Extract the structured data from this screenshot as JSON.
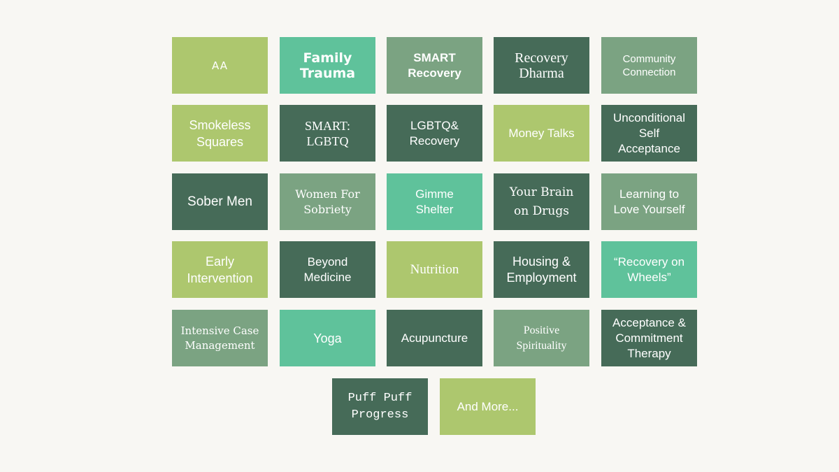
{
  "colors": {
    "light_green": "#adc76e",
    "teal": "#5fc29b",
    "sage": "#7ba382",
    "dark_green": "#466b58",
    "background": "#f8f7f3"
  },
  "tiles": [
    {
      "label": "AA",
      "color": "light_green"
    },
    {
      "label": "Family\nTrauma",
      "color": "teal"
    },
    {
      "label": "SMART\nRecovery",
      "color": "sage"
    },
    {
      "label": "Recovery\nDharma",
      "color": "dark_green"
    },
    {
      "label": "Community\nConnection",
      "color": "sage"
    },
    {
      "label": "Smokeless\nSquares",
      "color": "light_green"
    },
    {
      "label": "SMART:\nLGBTQ",
      "color": "dark_green"
    },
    {
      "label": "LGBTQ&\nRecovery",
      "color": "dark_green"
    },
    {
      "label": "Money Talks",
      "color": "light_green"
    },
    {
      "label": "Unconditional\nSelf\nAcceptance",
      "color": "dark_green"
    },
    {
      "label": "Sober Men",
      "color": "dark_green"
    },
    {
      "label": "Women For\nSobriety",
      "color": "sage"
    },
    {
      "label": "Gimme\nShelter",
      "color": "teal"
    },
    {
      "label": "Your Brain\non Drugs",
      "color": "dark_green"
    },
    {
      "label": "Learning to\nLove Yourself",
      "color": "sage"
    },
    {
      "label": "Early\nIntervention",
      "color": "light_green"
    },
    {
      "label": "Beyond\nMedicine",
      "color": "dark_green"
    },
    {
      "label": "Nutrition",
      "color": "light_green"
    },
    {
      "label": "Housing &\nEmployment",
      "color": "dark_green"
    },
    {
      "label": "“Recovery on\nWheels”",
      "color": "teal"
    },
    {
      "label": "Intensive Case\nManagement",
      "color": "sage"
    },
    {
      "label": "Yoga",
      "color": "teal"
    },
    {
      "label": "Acupuncture",
      "color": "dark_green"
    },
    {
      "label": "Positive\nSpirituality",
      "color": "sage"
    },
    {
      "label": "Acceptance &\nCommitment\nTherapy",
      "color": "dark_green"
    },
    {
      "label": "Puff Puff\nProgress",
      "color": "dark_green"
    },
    {
      "label": "And More...",
      "color": "light_green"
    }
  ]
}
